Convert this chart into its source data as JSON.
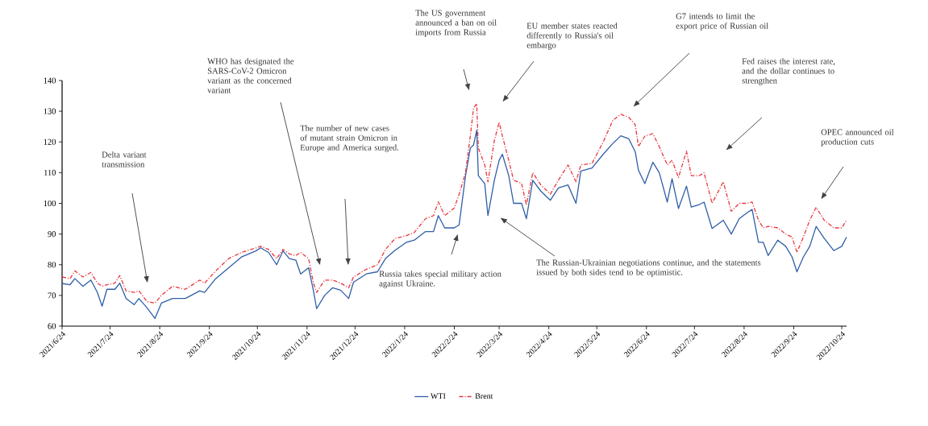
{
  "chart_data": {
    "type": "line",
    "x": [
      "2021-06-24",
      "2021-06-29",
      "2021-07-02",
      "2021-07-07",
      "2021-07-12",
      "2021-07-16",
      "2021-07-19",
      "2021-07-22",
      "2021-07-27",
      "2021-07-30",
      "2021-08-03",
      "2021-08-08",
      "2021-08-11",
      "2021-08-16",
      "2021-08-21",
      "2021-08-25",
      "2021-09-01",
      "2021-09-09",
      "2021-09-18",
      "2021-09-21",
      "2021-09-28",
      "2021-10-06",
      "2021-10-14",
      "2021-10-23",
      "2021-10-26",
      "2021-10-31",
      "2021-11-05",
      "2021-11-09",
      "2021-11-13",
      "2021-11-17",
      "2021-11-20",
      "2021-11-25",
      "2021-11-28",
      "2021-11-30",
      "2021-12-05",
      "2021-12-10",
      "2021-12-15",
      "2021-12-20",
      "2021-12-23",
      "2021-12-31",
      "2022-01-07",
      "2022-01-12",
      "2022-01-18",
      "2022-01-25",
      "2022-01-30",
      "2022-02-06",
      "2022-02-11",
      "2022-02-14",
      "2022-02-18",
      "2022-02-24",
      "2022-02-27",
      "2022-03-03",
      "2022-03-06",
      "2022-03-08",
      "2022-03-10",
      "2022-03-11",
      "2022-03-15",
      "2022-03-17",
      "2022-03-21",
      "2022-03-24",
      "2022-03-26",
      "2022-03-30",
      "2022-04-02",
      "2022-04-07",
      "2022-04-10",
      "2022-04-14",
      "2022-04-19",
      "2022-04-25",
      "2022-04-30",
      "2022-05-06",
      "2022-05-11",
      "2022-05-14",
      "2022-05-21",
      "2022-05-28",
      "2022-06-03",
      "2022-06-08",
      "2022-06-13",
      "2022-06-17",
      "2022-06-19",
      "2022-06-23",
      "2022-06-28",
      "2022-07-02",
      "2022-07-07",
      "2022-07-10",
      "2022-07-14",
      "2022-07-19",
      "2022-07-22",
      "2022-07-27",
      "2022-07-30",
      "2022-08-04",
      "2022-08-11",
      "2022-08-16",
      "2022-08-21",
      "2022-08-26",
      "2022-08-29",
      "2022-09-02",
      "2022-09-05",
      "2022-09-08",
      "2022-09-14",
      "2022-09-19",
      "2022-09-23",
      "2022-09-26",
      "2022-09-30",
      "2022-10-04",
      "2022-10-08",
      "2022-10-13",
      "2022-10-19",
      "2022-10-24",
      "2022-10-27"
    ],
    "series": [
      {
        "name": "WTI",
        "color": "#2f5fa8",
        "line_style": "solid",
        "values": [
          73.9,
          73.5,
          75.5,
          73,
          75,
          71,
          66.5,
          72,
          72,
          74,
          69,
          67,
          69,
          66,
          62.5,
          67.5,
          69,
          69,
          71.5,
          71,
          75.5,
          79,
          82.5,
          84.5,
          85.5,
          84,
          80,
          84.5,
          82,
          81.5,
          77,
          79,
          71.5,
          65.7,
          70,
          72.5,
          71.7,
          69,
          74.3,
          77,
          77.7,
          82,
          84.7,
          87.3,
          88,
          90.8,
          90.8,
          96,
          92,
          92,
          93,
          109,
          118,
          119,
          123.8,
          109,
          106.4,
          96,
          107.5,
          114,
          116,
          109,
          100,
          100,
          95,
          107.5,
          104,
          101,
          105,
          106,
          100,
          110.5,
          111.5,
          116,
          119.5,
          122,
          121,
          116.8,
          110.8,
          106.4,
          113.4,
          110,
          100.4,
          108,
          98.3,
          105.6,
          98.8,
          99.6,
          100.4,
          91.8,
          94.5,
          90,
          95,
          97,
          98,
          87.3,
          87.3,
          83,
          88,
          86,
          82.5,
          77.7,
          82.5,
          86,
          92.5,
          88.6,
          84.6,
          86,
          89
        ]
      },
      {
        "name": "Brent",
        "color": "#e8383f",
        "line_style": "dashdot",
        "values": [
          76,
          75.5,
          78,
          76,
          77.5,
          74,
          73,
          73.5,
          74,
          76.5,
          71.5,
          71,
          71.5,
          68,
          67.5,
          70,
          73,
          72,
          75,
          74,
          78,
          82,
          84,
          85.5,
          86,
          85,
          82,
          85,
          83.5,
          83,
          84,
          82,
          74,
          71,
          75,
          75,
          74,
          72.5,
          76,
          78.5,
          80,
          85,
          88.5,
          89.5,
          90.5,
          95,
          96,
          100.5,
          96,
          98.5,
          103,
          110,
          122,
          131,
          132.5,
          118,
          112.5,
          107,
          120.5,
          126.4,
          122,
          114,
          107.5,
          106.5,
          99.5,
          110,
          106,
          103,
          107.5,
          112.5,
          107,
          112.5,
          113,
          120,
          127,
          129,
          128,
          125.6,
          118.5,
          121.9,
          122.7,
          118.5,
          112.5,
          114,
          108.4,
          117,
          109,
          109,
          110,
          100,
          107,
          97.4,
          100,
          100,
          100.4,
          94.5,
          92,
          92.5,
          92,
          90,
          89,
          84,
          89,
          94.5,
          98.7,
          94.5,
          92,
          92,
          94.5
        ]
      }
    ],
    "xlim": [
      "2021-06-24",
      "2022-10-27"
    ],
    "xticks": [
      {
        "value": "2021-06-24",
        "label": "2021/6/24"
      },
      {
        "value": "2021-07-24",
        "label": "2021/7/24"
      },
      {
        "value": "2021-08-24",
        "label": "2021/8/24"
      },
      {
        "value": "2021-09-24",
        "label": "2021/9/24"
      },
      {
        "value": "2021-10-24",
        "label": "2021/10/24"
      },
      {
        "value": "2021-11-24",
        "label": "2021/11/24"
      },
      {
        "value": "2021-12-24",
        "label": "2021/12/24"
      },
      {
        "value": "2022-01-24",
        "label": "2022/1/24"
      },
      {
        "value": "2022-02-24",
        "label": "2022/2/24"
      },
      {
        "value": "2022-03-24",
        "label": "2022/3/24"
      },
      {
        "value": "2022-04-24",
        "label": "2022/4/24"
      },
      {
        "value": "2022-05-24",
        "label": "2022/5/24"
      },
      {
        "value": "2022-06-24",
        "label": "2022/6/24"
      },
      {
        "value": "2022-07-24",
        "label": "2022/7/24"
      },
      {
        "value": "2022-08-24",
        "label": "2022/8/24"
      },
      {
        "value": "2022-09-24",
        "label": "2022/9/24"
      },
      {
        "value": "2022-10-24",
        "label": "2022/10/24"
      }
    ],
    "ylim": [
      60,
      140
    ],
    "yticks": [
      60,
      70,
      80,
      90,
      100,
      110,
      120,
      130,
      140
    ],
    "grid": false,
    "legend": "bottom",
    "annotations": [
      "Delta variant transmission",
      "WHO has designated the SARS-CoV-2 Omicron variant as the concerned variant",
      "The number of new cases of mutant strain Omicron in Europe and America surged.",
      "Russia takes special military action against Ukraine.",
      "The US government announced a ban on oil imports from Russia",
      "EU member states reacted differently to Russia's oil embargo",
      "The Russian-Ukrainian negotiations continue, and the statements issued by both sides tend to be optimistic.",
      "G7 intends to limit the export price of Russian oil",
      "Fed raises the interest rate, and the dollar continues to strengthen",
      "OPEC announced oil production cuts"
    ]
  }
}
